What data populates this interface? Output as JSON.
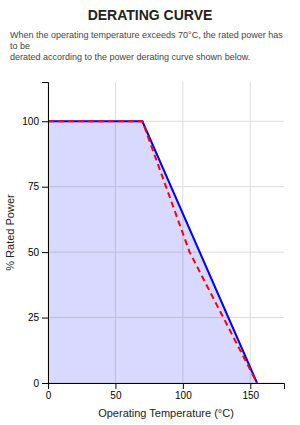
{
  "chart_data": {
    "type": "line",
    "title": "DERATING CURVE",
    "subtitle": "When the operating temperature exceeds 70°C, the rated power has to be\nderated according to the power derating curve shown below.",
    "x_label": "Operating Temperature (°C)",
    "y_label": "% Rated Power",
    "series": [
      {
        "type": "area",
        "color": "blue",
        "line_style": "solid",
        "x": [
          0,
          70,
          155
        ],
        "values": [
          100,
          100,
          0
        ]
      },
      {
        "type": "line",
        "color": "red",
        "line_style": "dashed",
        "x": [
          0,
          30,
          70,
          105,
          155
        ],
        "values": [
          100,
          100,
          100,
          50,
          0
        ]
      }
    ],
    "xlim": [
      0,
      175
    ],
    "ylim": [
      0,
      115
    ],
    "xticks": [
      0,
      50,
      100,
      150
    ],
    "yticks": [
      0,
      25,
      50,
      75,
      100
    ],
    "grid": true
  }
}
